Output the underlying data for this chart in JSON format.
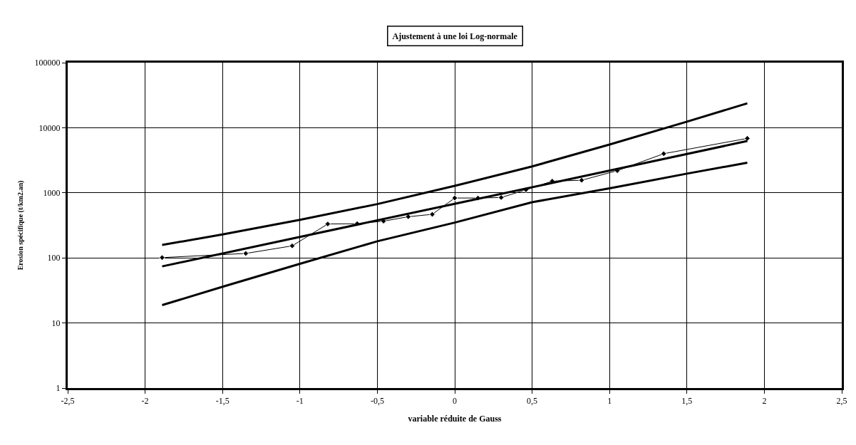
{
  "chart_data": {
    "type": "line",
    "title": "Ajustement à une loi Log-normale",
    "xlabel": "variable réduite de Gauss",
    "ylabel": "Erosion spécifique (t/km2.an)",
    "log": "y",
    "grid": true,
    "xlim": [
      -2.5,
      2.5
    ],
    "xticks": [
      {
        "value": -2.5,
        "label": "-2,5"
      },
      -2,
      {
        "value": -1.5,
        "label": "-1,5"
      },
      -1,
      {
        "value": -0.5,
        "label": "-0,5"
      },
      0,
      {
        "value": 0.5,
        "label": "0,5"
      },
      1,
      {
        "value": 1.5,
        "label": "1,5"
      },
      2,
      {
        "value": 2.5,
        "label": "2,5"
      }
    ],
    "ylim": [
      1,
      100000
    ],
    "yticks": [
      1,
      10,
      100,
      1000,
      10000,
      100000
    ],
    "series": [
      {
        "color": "#000000",
        "marker": "diamond",
        "x": [
          -1.89,
          -1.35,
          -1.05,
          -0.82,
          -0.63,
          -0.46,
          -0.3,
          -0.145,
          0,
          0.15,
          0.3,
          0.46,
          0.63,
          0.82,
          1.05,
          1.35,
          1.89
        ],
        "values": [
          101,
          117,
          153,
          332,
          335,
          367,
          429,
          467,
          832,
          832,
          847,
          1112,
          1510,
          1560,
          2190,
          3990,
          6860
        ]
      },
      {
        "color": "#000000",
        "marker": "none",
        "x": [
          -1.89,
          0,
          1.89
        ],
        "values": [
          74,
          678,
          6250
        ]
      },
      {
        "color": "#000000",
        "marker": "none",
        "x": [
          -1.89,
          -1.5,
          -1,
          -0.5,
          0,
          0.5,
          1,
          1.5,
          1.89
        ],
        "values": [
          158,
          229,
          385,
          671,
          1278,
          2540,
          5520,
          12400,
          23700
        ]
      },
      {
        "color": "#000000",
        "marker": "none",
        "x": [
          -1.89,
          -1.5,
          -1,
          -0.5,
          0,
          0.5,
          1,
          1.5,
          1.89
        ],
        "values": [
          18.8,
          36,
          81,
          180,
          349,
          717,
          1170,
          1970,
          2900
        ]
      }
    ]
  }
}
